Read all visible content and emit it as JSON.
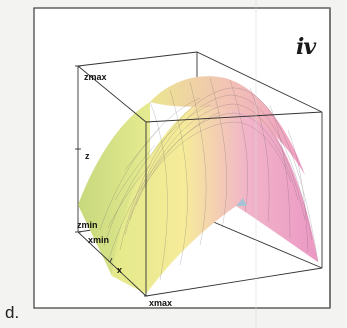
{
  "option_letter": "d.",
  "roman_label": "iv",
  "axis_labels": {
    "zmax": "zmax",
    "z": "z",
    "zmin": "zmin",
    "xmin": "xmin",
    "x": "x",
    "xmax": "xmax"
  },
  "colors": {
    "low_front": "#f3ee8c",
    "high": "#eea0c6",
    "side": "#d6df84",
    "mesh": "#6d5d6a",
    "frame": "#333333"
  }
}
